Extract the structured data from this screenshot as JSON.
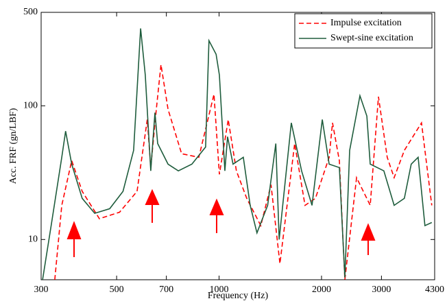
{
  "chart_data": {
    "type": "line",
    "x_label": "Frequency (Hz)",
    "y_label": "Acc. FRF (gn/LBF)",
    "xscale": "log",
    "yscale": "log",
    "legend": "upper right",
    "xlim": [
      300,
      4300
    ],
    "ylim": [
      5,
      500
    ],
    "xticks": [
      300,
      500,
      700,
      1000,
      2000,
      3000,
      4300
    ],
    "yticks": [
      10,
      100,
      500
    ],
    "series": [
      {
        "name": "Impulse excitation",
        "color": "#ff0000",
        "linestyle": "dashed",
        "x": [
          329,
          345,
          369,
          396,
          445,
          510,
          574,
          615,
          630,
          654,
          675,
          708,
          776,
          872,
          966,
          1002,
          1064,
          1124,
          1206,
          1326,
          1421,
          1509,
          1668,
          1789,
          1919,
          2106,
          2154,
          2257,
          2342,
          2535,
          2781,
          2940,
          3120,
          3269,
          3503,
          3933,
          4217
        ],
        "values": [
          5.0,
          18.0,
          38.9,
          22.9,
          14.3,
          16.0,
          22.9,
          78.9,
          34.5,
          94.2,
          203,
          94.2,
          43.8,
          41.2,
          122,
          30.7,
          78.9,
          32.6,
          20.3,
          12.7,
          25.7,
          6.6,
          52.2,
          18.0,
          20.3,
          41.2,
          74.5,
          38.9,
          5.0,
          29.0,
          18.0,
          117,
          41.2,
          29.0,
          46.4,
          74.5,
          18.0
        ]
      },
      {
        "name": "Swept-sine excitation",
        "color": "#1e5c3c",
        "linestyle": "solid",
        "x": [
          303,
          321,
          345,
          354,
          369,
          396,
          431,
          477,
          522,
          561,
          588,
          607,
          630,
          636,
          648,
          660,
          708,
          759,
          832,
          913,
          934,
          980,
          1002,
          1040,
          1059,
          1099,
          1178,
          1234,
          1292,
          1389,
          1468,
          1502,
          1630,
          1748,
          1875,
          2010,
          2106,
          2257,
          2342,
          2419,
          2594,
          2718,
          2781,
          3049,
          3269,
          3503,
          3670,
          3845,
          4025,
          4217
        ],
        "values": [
          5.0,
          12.7,
          41.2,
          64.6,
          36.6,
          20.3,
          15.7,
          17.0,
          22.9,
          46.4,
          379,
          170,
          32.6,
          46.4,
          88.9,
          52.2,
          36.6,
          32.6,
          36.6,
          49.2,
          307,
          243,
          170,
          32.6,
          58.7,
          36.6,
          41.2,
          18.0,
          11.2,
          18.0,
          52.2,
          10,
          74.5,
          32.6,
          18.0,
          78.9,
          36.6,
          34.5,
          5.2,
          46.4,
          119,
          83.8,
          36.6,
          32.6,
          18.0,
          20.3,
          36.6,
          41.2,
          12.7,
          13.4
        ]
      }
    ]
  }
}
